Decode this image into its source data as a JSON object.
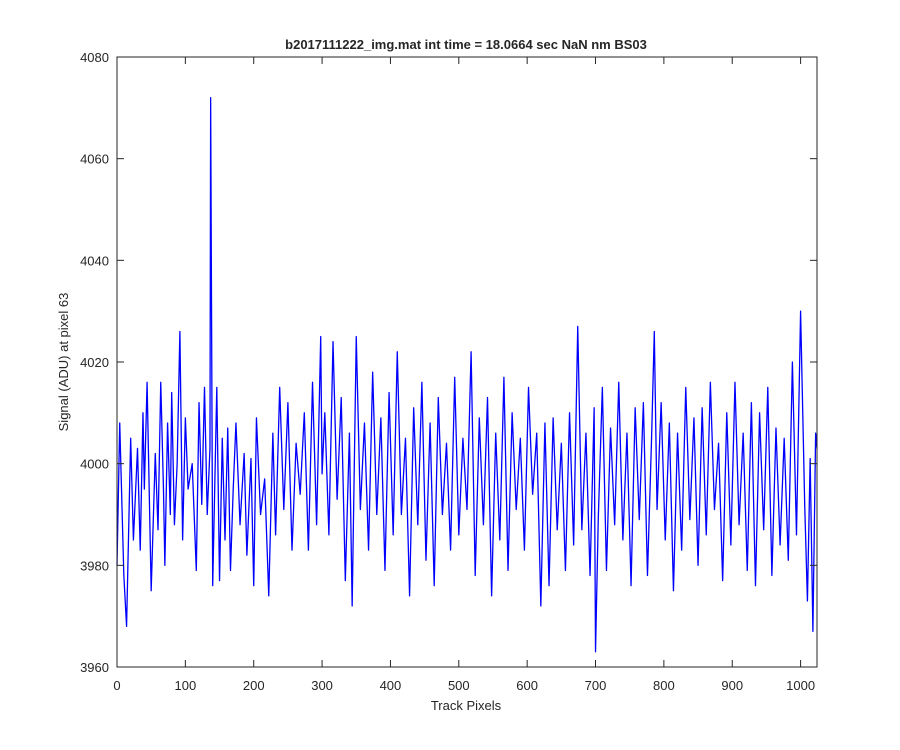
{
  "chart_data": {
    "type": "line",
    "title": "b2017111222_img.mat int time = 18.0664 sec  NaN nm BS03",
    "xlabel": "Track Pixels",
    "ylabel": "Signal (ADU) at pixel 63",
    "xlim": [
      0,
      1024
    ],
    "ylim": [
      3960,
      4080
    ],
    "xticks": [
      0,
      100,
      200,
      300,
      400,
      500,
      600,
      700,
      800,
      900,
      1000
    ],
    "yticks": [
      3960,
      3980,
      4000,
      4020,
      4040,
      4060,
      4080
    ],
    "grid": false,
    "colors": {
      "line": "#0000ff",
      "axes": "#262626",
      "background": "#ffffff"
    },
    "series": [
      {
        "x": [
          0,
          4,
          10,
          14,
          20,
          24,
          30,
          34,
          38,
          40,
          44,
          50,
          56,
          60,
          64,
          68,
          70,
          74,
          78,
          80,
          84,
          88,
          92,
          96,
          100,
          104,
          110,
          116,
          120,
          124,
          128,
          132,
          136,
          137,
          140,
          146,
          150,
          154,
          158,
          162,
          166,
          170,
          174,
          180,
          186,
          190,
          196,
          200,
          204,
          210,
          216,
          222,
          228,
          232,
          238,
          244,
          250,
          256,
          262,
          268,
          274,
          280,
          286,
          292,
          298,
          300,
          304,
          310,
          316,
          322,
          328,
          334,
          340,
          344,
          350,
          356,
          362,
          368,
          374,
          380,
          386,
          392,
          398,
          404,
          410,
          416,
          422,
          428,
          434,
          440,
          446,
          452,
          458,
          464,
          470,
          476,
          482,
          488,
          494,
          500,
          506,
          512,
          518,
          524,
          530,
          536,
          542,
          548,
          554,
          560,
          566,
          572,
          578,
          584,
          590,
          596,
          602,
          608,
          614,
          620,
          626,
          632,
          638,
          644,
          650,
          656,
          662,
          668,
          674,
          680,
          686,
          692,
          698,
          700,
          704,
          710,
          716,
          722,
          728,
          734,
          740,
          746,
          752,
          758,
          764,
          770,
          776,
          782,
          786,
          790,
          796,
          802,
          808,
          814,
          820,
          826,
          832,
          838,
          844,
          850,
          856,
          862,
          868,
          874,
          880,
          886,
          892,
          898,
          904,
          910,
          916,
          922,
          928,
          934,
          940,
          946,
          952,
          958,
          964,
          970,
          976,
          982,
          988,
          994,
          1000,
          1006,
          1010,
          1014,
          1018,
          1022,
          1024
        ],
        "y": [
          3980,
          4008,
          3978,
          3968,
          4005,
          3985,
          4003,
          3983,
          4010,
          3995,
          4016,
          3975,
          4002,
          3987,
          4016,
          3995,
          3980,
          4008,
          3990,
          4014,
          3988,
          4000,
          4026,
          3985,
          4009,
          3995,
          4000,
          3979,
          4012,
          3992,
          4015,
          3990,
          4003,
          4072,
          3976,
          4015,
          3977,
          4005,
          3985,
          4007,
          3979,
          3995,
          4008,
          3988,
          4002,
          3982,
          4001,
          3976,
          4009,
          3990,
          3997,
          3974,
          4006,
          3986,
          4015,
          3991,
          4012,
          3983,
          4004,
          3994,
          4010,
          3983,
          4016,
          3988,
          4025,
          3998,
          4010,
          3986,
          4024,
          3993,
          4013,
          3977,
          4006,
          3972,
          4025,
          3991,
          4008,
          3983,
          4018,
          3990,
          4009,
          3979,
          4014,
          3986,
          4022,
          3990,
          4005,
          3974,
          4011,
          3988,
          4016,
          3981,
          4008,
          3976,
          4013,
          3990,
          4004,
          3983,
          4017,
          3986,
          4005,
          3991,
          4022,
          3978,
          4009,
          3988,
          4013,
          3974,
          4006,
          3985,
          4017,
          3979,
          4010,
          3991,
          4005,
          3983,
          4015,
          3994,
          4006,
          3972,
          4008,
          3976,
          4009,
          3987,
          4004,
          3979,
          4010,
          3984,
          4027,
          3987,
          4006,
          3978,
          4011,
          3963,
          3989,
          4015,
          3979,
          4007,
          3988,
          4016,
          3985,
          4006,
          3976,
          4011,
          3989,
          4012,
          3978,
          4005,
          4026,
          3991,
          4012,
          3985,
          4008,
          3975,
          4006,
          3983,
          4015,
          3989,
          4009,
          3980,
          4011,
          3986,
          4016,
          3991,
          4004,
          3977,
          4010,
          3984,
          4016,
          3988,
          4006,
          3979,
          4012,
          3976,
          4010,
          3987,
          4015,
          3978,
          4007,
          3984,
          4005,
          3981,
          4020,
          3986,
          4030,
          3992,
          3973,
          4001,
          3967,
          4006,
          4003
        ]
      }
    ]
  }
}
